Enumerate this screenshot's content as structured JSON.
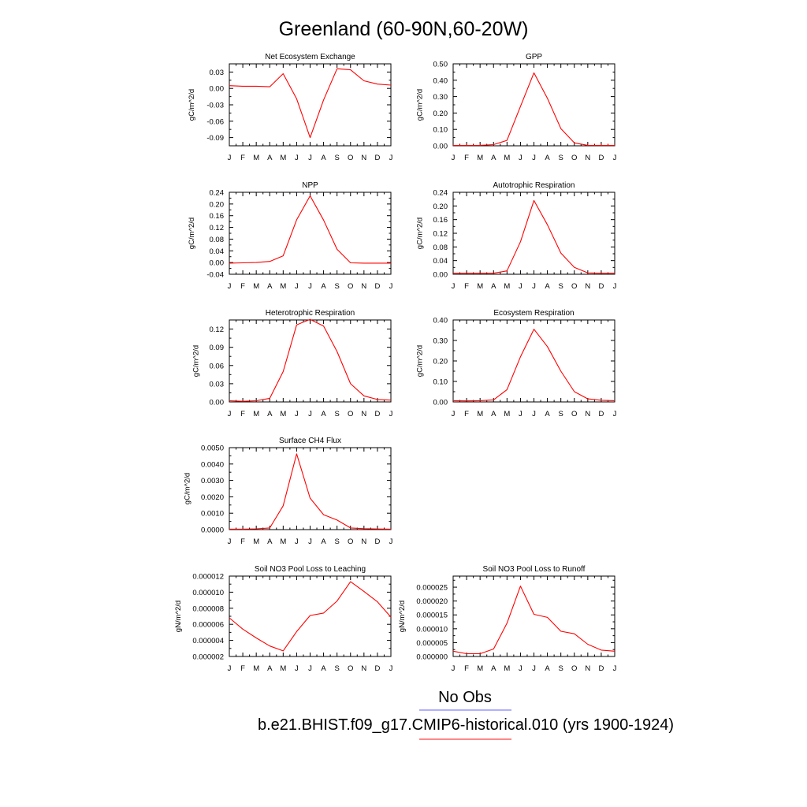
{
  "page": {
    "title": "Greenland (60-90N,60-20W)"
  },
  "legend": {
    "items": [
      {
        "label": "No Obs",
        "color": "#8080ff"
      },
      {
        "label": "b.e21.BHIST.f09_g17.CMIP6-historical.010 (yrs 1900-1924)",
        "color": "#ff4040"
      }
    ]
  },
  "line_color": "#ff0000",
  "months": [
    "J",
    "F",
    "M",
    "A",
    "M",
    "J",
    "J",
    "A",
    "S",
    "O",
    "N",
    "D",
    "J"
  ],
  "chart_data": [
    {
      "type": "line",
      "title": "Net Ecosystem Exchange",
      "ylabel": "gC/m^2/d",
      "ylim": [
        -0.105,
        0.045
      ],
      "yticks": [
        -0.09,
        -0.06,
        -0.03,
        0.0,
        0.03
      ],
      "yticklabels": [
        "-0.09",
        "-0.06",
        "-0.03",
        "0.00",
        "0.03"
      ],
      "series": [
        {
          "values": [
            0.005,
            0.004,
            0.004,
            0.003,
            0.027,
            -0.019,
            -0.09,
            -0.021,
            0.036,
            0.034,
            0.014,
            0.008,
            0.006
          ]
        }
      ]
    },
    {
      "type": "line",
      "title": "GPP",
      "ylabel": "gC/m^2/d",
      "ylim": [
        0,
        0.5
      ],
      "yticks": [
        0,
        0.1,
        0.2,
        0.3,
        0.4,
        0.5
      ],
      "yticklabels": [
        "0.00",
        "0.10",
        "0.20",
        "0.30",
        "0.40",
        "0.50"
      ],
      "series": [
        {
          "values": [
            0.002,
            0.002,
            0.003,
            0.007,
            0.033,
            0.24,
            0.445,
            0.29,
            0.105,
            0.018,
            0.003,
            0.002,
            0.002
          ]
        }
      ]
    },
    {
      "type": "line",
      "title": "NPP",
      "ylabel": "gC/m^2/d",
      "ylim": [
        -0.04,
        0.24
      ],
      "yticks": [
        -0.04,
        0.0,
        0.04,
        0.08,
        0.12,
        0.16,
        0.2,
        0.24
      ],
      "yticklabels": [
        "-0.04",
        "0.00",
        "0.04",
        "0.08",
        "0.12",
        "0.16",
        "0.20",
        "0.24"
      ],
      "series": [
        {
          "values": [
            -0.002,
            -0.001,
            0.0,
            0.004,
            0.023,
            0.146,
            0.228,
            0.145,
            0.045,
            -0.001,
            -0.002,
            -0.002,
            -0.002
          ]
        }
      ]
    },
    {
      "type": "line",
      "title": "Autotrophic Respiration",
      "ylabel": "gC/m^2/d",
      "ylim": [
        0,
        0.24
      ],
      "yticks": [
        0,
        0.04,
        0.08,
        0.12,
        0.16,
        0.2,
        0.24
      ],
      "yticklabels": [
        "0.00",
        "0.04",
        "0.08",
        "0.12",
        "0.16",
        "0.20",
        "0.24"
      ],
      "series": [
        {
          "values": [
            0.003,
            0.003,
            0.003,
            0.003,
            0.01,
            0.095,
            0.216,
            0.145,
            0.062,
            0.02,
            0.004,
            0.003,
            0.003
          ]
        }
      ]
    },
    {
      "type": "line",
      "title": "Heterotrophic Respiration",
      "ylabel": "gC/m^2/d",
      "ylim": [
        0,
        0.135
      ],
      "yticks": [
        0,
        0.03,
        0.06,
        0.09,
        0.12
      ],
      "yticklabels": [
        "0.00",
        "0.03",
        "0.06",
        "0.09",
        "0.12"
      ],
      "series": [
        {
          "values": [
            0.002,
            0.001,
            0.002,
            0.006,
            0.05,
            0.127,
            0.136,
            0.125,
            0.083,
            0.03,
            0.01,
            0.004,
            0.003
          ]
        }
      ]
    },
    {
      "type": "line",
      "title": "Ecosystem Respiration",
      "ylabel": "gC/m^2/d",
      "ylim": [
        0,
        0.4
      ],
      "yticks": [
        0,
        0.1,
        0.2,
        0.3,
        0.4
      ],
      "yticklabels": [
        "0.00",
        "0.10",
        "0.20",
        "0.30",
        "0.40"
      ],
      "series": [
        {
          "values": [
            0.006,
            0.005,
            0.006,
            0.01,
            0.06,
            0.22,
            0.355,
            0.27,
            0.15,
            0.05,
            0.015,
            0.008,
            0.006
          ]
        }
      ]
    },
    {
      "type": "line",
      "title": "Surface CH4 Flux",
      "ylabel": "gC/m^2/d",
      "ylim": [
        0,
        0.005
      ],
      "yticks": [
        0,
        0.001,
        0.002,
        0.003,
        0.004,
        0.005
      ],
      "yticklabels": [
        "0.0000",
        "0.0010",
        "0.0020",
        "0.0030",
        "0.0040",
        "0.0050"
      ],
      "series": [
        {
          "values": [
            3e-05,
            3e-05,
            5e-05,
            0.0001,
            0.00145,
            0.00462,
            0.00192,
            0.00091,
            0.00058,
            0.0001,
            6e-05,
            4e-05,
            3e-05
          ]
        }
      ]
    },
    {
      "type": "line",
      "title": "Soil NO3 Pool Loss to Leaching",
      "ylabel": "gN/m^2/d",
      "ylim": [
        2e-06,
        1.2e-05
      ],
      "yticks": [
        2e-06,
        4e-06,
        6e-06,
        8e-06,
        1e-05,
        1.2e-05
      ],
      "yticklabels": [
        "0.000002",
        "0.000004",
        "0.000006",
        "0.000008",
        "0.000010",
        "0.000012"
      ],
      "series": [
        {
          "values": [
            6.8e-06,
            5.4e-06,
            4.3e-06,
            3.3e-06,
            2.7e-06,
            5.1e-06,
            7.1e-06,
            7.4e-06,
            8.9e-06,
            1.13e-05,
            1.01e-05,
            8.8e-06,
            6.9e-06
          ]
        }
      ]
    },
    {
      "type": "line",
      "title": "Soil NO3 Pool Loss to Runoff",
      "ylabel": "gN/m^2/d",
      "ylim": [
        0,
        2.9e-05
      ],
      "yticks": [
        0,
        5e-06,
        1e-05,
        1.5e-05,
        2e-05,
        2.5e-05
      ],
      "yticklabels": [
        "0.000000",
        "0.000005",
        "0.000010",
        "0.000015",
        "0.000020",
        "0.000025"
      ],
      "series": [
        {
          "values": [
            1.9e-06,
            1e-06,
            1e-06,
            2.7e-06,
            1.2e-05,
            2.54e-05,
            1.52e-05,
            1.41e-05,
            9.1e-06,
            8.2e-06,
            4.4e-06,
            2.3e-06,
            1.9e-06
          ]
        }
      ]
    }
  ]
}
